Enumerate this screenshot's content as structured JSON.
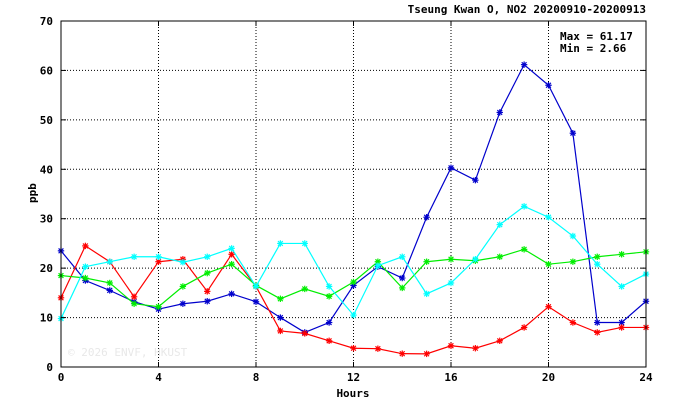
{
  "chart_data": {
    "type": "line",
    "title": "Tseung Kwan O, NO2 20200910-20200913",
    "xlabel": "Hours",
    "ylabel": "ppb",
    "xlim": [
      0,
      24
    ],
    "ylim": [
      0,
      70
    ],
    "x_ticks": [
      0,
      4,
      8,
      12,
      16,
      20,
      24
    ],
    "y_ticks": [
      0,
      10,
      20,
      30,
      40,
      50,
      60,
      70
    ],
    "grid": true,
    "stats": {
      "max_label": "Max = 61.17",
      "min_label": "Min = 2.66"
    },
    "watermark": "© 2026 ENVF, HKUST",
    "x": [
      0,
      1,
      2,
      3,
      4,
      5,
      6,
      7,
      8,
      9,
      10,
      11,
      12,
      13,
      14,
      15,
      16,
      17,
      18,
      19,
      20,
      21,
      22,
      23,
      24
    ],
    "series": [
      {
        "color": "#0000cc",
        "values": [
          23.5,
          17.5,
          15.5,
          13.2,
          11.7,
          12.8,
          13.3,
          14.8,
          13.2,
          10.0,
          7.0,
          9.0,
          16.5,
          20.3,
          18.0,
          30.3,
          40.3,
          37.8,
          51.5,
          61.17,
          57.0,
          47.3,
          9.0,
          9.0,
          13.3
        ]
      },
      {
        "color": "#ff0000",
        "values": [
          14.0,
          24.5,
          21.3,
          14.2,
          21.3,
          21.8,
          15.3,
          22.8,
          16.3,
          7.3,
          6.8,
          5.3,
          3.8,
          3.7,
          2.7,
          2.66,
          4.3,
          3.8,
          5.3,
          8.0,
          12.2,
          9.0,
          7.0,
          8.0,
          8.0
        ]
      },
      {
        "color": "#00ee00",
        "values": [
          18.5,
          18.0,
          17.0,
          12.8,
          12.2,
          16.3,
          19.0,
          20.8,
          16.5,
          13.8,
          15.8,
          14.3,
          17.2,
          21.3,
          16.0,
          21.3,
          21.8,
          21.5,
          22.3,
          23.8,
          20.8,
          21.3,
          22.3,
          22.8,
          23.3
        ]
      },
      {
        "color": "#00ffff",
        "values": [
          9.8,
          20.3,
          21.3,
          22.3,
          22.3,
          21.2,
          22.3,
          24.0,
          16.3,
          25.0,
          25.0,
          16.3,
          10.5,
          20.5,
          22.3,
          14.8,
          17.0,
          21.8,
          28.8,
          32.5,
          30.3,
          26.5,
          20.8,
          16.3,
          18.8
        ]
      }
    ]
  }
}
